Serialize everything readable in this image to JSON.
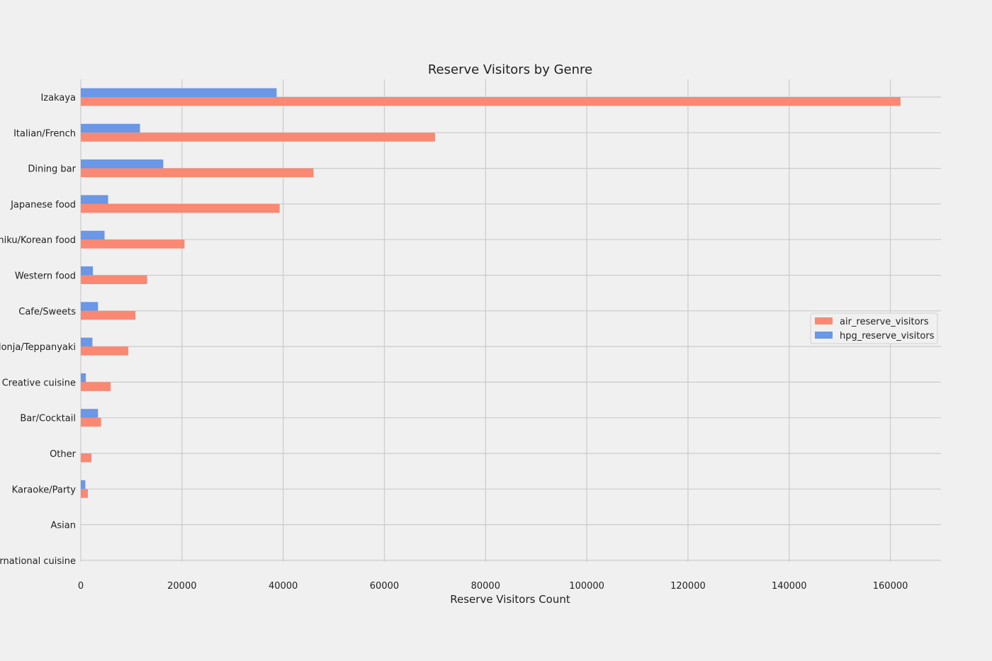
{
  "chart_data": {
    "type": "bar",
    "orientation": "horizontal",
    "title": "Reserve Visitors by Genre",
    "xlabel": "Reserve Visitors Count",
    "ylabel": "",
    "xlim": [
      0,
      170000
    ],
    "xticks": [
      0,
      20000,
      40000,
      60000,
      80000,
      100000,
      120000,
      140000,
      160000
    ],
    "grid": true,
    "legend_position": "right",
    "categories": [
      "Izakaya",
      "Italian/French",
      "Dining bar",
      "Japanese food",
      "Yakiniku/Korean food",
      "Western food",
      "Cafe/Sweets",
      "Okonomiyaki/Monja/Teppanyaki",
      "Creative cuisine",
      "Bar/Cocktail",
      "Other",
      "Karaoke/Party",
      "Asian",
      "International cuisine"
    ],
    "series": [
      {
        "name": "air_reserve_visitors",
        "color": "#fa8872",
        "values": [
          162000,
          70000,
          46000,
          39300,
          20500,
          13100,
          10800,
          9400,
          5900,
          4000,
          2100,
          1400,
          0,
          0
        ]
      },
      {
        "name": "hpg_reserve_visitors",
        "color": "#6a97e6",
        "values": [
          38700,
          11700,
          16300,
          5400,
          4700,
          2400,
          3400,
          2300,
          1000,
          3400,
          0,
          900,
          0,
          0
        ]
      }
    ]
  }
}
